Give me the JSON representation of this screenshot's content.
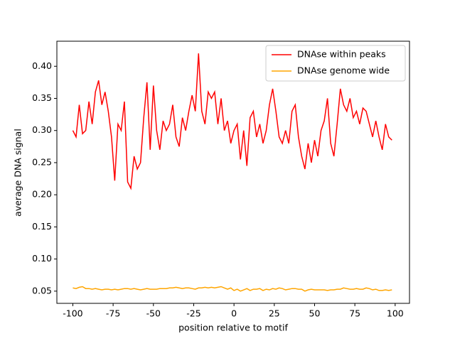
{
  "chart_data": {
    "type": "line",
    "xlabel": "position relative to motif",
    "ylabel": "average DNA signal",
    "x": [
      -100,
      -98,
      -96,
      -94,
      -92,
      -90,
      -88,
      -86,
      -84,
      -82,
      -80,
      -78,
      -76,
      -74,
      -72,
      -70,
      -68,
      -66,
      -64,
      -62,
      -60,
      -58,
      -56,
      -54,
      -52,
      -50,
      -48,
      -46,
      -44,
      -42,
      -40,
      -38,
      -36,
      -34,
      -32,
      -30,
      -28,
      -26,
      -24,
      -22,
      -20,
      -18,
      -16,
      -14,
      -12,
      -10,
      -8,
      -6,
      -4,
      -2,
      0,
      2,
      4,
      6,
      8,
      10,
      12,
      14,
      16,
      18,
      20,
      22,
      24,
      26,
      28,
      30,
      32,
      34,
      36,
      38,
      40,
      42,
      44,
      46,
      48,
      50,
      52,
      54,
      56,
      58,
      60,
      62,
      64,
      66,
      68,
      70,
      72,
      74,
      76,
      78,
      80,
      82,
      84,
      86,
      88,
      90,
      92,
      94,
      96,
      98
    ],
    "series": [
      {
        "name": "DNAse within peaks",
        "color": "#ff0000",
        "values": [
          0.3,
          0.29,
          0.34,
          0.295,
          0.3,
          0.345,
          0.31,
          0.36,
          0.378,
          0.34,
          0.36,
          0.33,
          0.29,
          0.222,
          0.31,
          0.3,
          0.345,
          0.22,
          0.21,
          0.26,
          0.24,
          0.25,
          0.32,
          0.375,
          0.27,
          0.37,
          0.3,
          0.27,
          0.315,
          0.3,
          0.31,
          0.34,
          0.29,
          0.275,
          0.32,
          0.3,
          0.33,
          0.355,
          0.33,
          0.42,
          0.33,
          0.31,
          0.36,
          0.35,
          0.36,
          0.31,
          0.35,
          0.3,
          0.315,
          0.28,
          0.3,
          0.31,
          0.255,
          0.3,
          0.245,
          0.32,
          0.33,
          0.29,
          0.31,
          0.28,
          0.3,
          0.34,
          0.365,
          0.33,
          0.29,
          0.28,
          0.3,
          0.28,
          0.33,
          0.34,
          0.29,
          0.26,
          0.24,
          0.28,
          0.25,
          0.285,
          0.26,
          0.3,
          0.315,
          0.35,
          0.28,
          0.26,
          0.31,
          0.365,
          0.34,
          0.33,
          0.35,
          0.32,
          0.33,
          0.31,
          0.335,
          0.33,
          0.31,
          0.29,
          0.315,
          0.29,
          0.27,
          0.31,
          0.29,
          0.285
        ]
      },
      {
        "name": "DNAse genome wide",
        "color": "#ffa500",
        "values": [
          0.055,
          0.054,
          0.056,
          0.057,
          0.054,
          0.054,
          0.053,
          0.054,
          0.053,
          0.052,
          0.053,
          0.053,
          0.052,
          0.053,
          0.052,
          0.053,
          0.054,
          0.054,
          0.053,
          0.054,
          0.053,
          0.052,
          0.053,
          0.054,
          0.053,
          0.053,
          0.053,
          0.054,
          0.054,
          0.054,
          0.055,
          0.055,
          0.056,
          0.055,
          0.054,
          0.055,
          0.055,
          0.054,
          0.053,
          0.055,
          0.055,
          0.056,
          0.055,
          0.056,
          0.055,
          0.056,
          0.057,
          0.055,
          0.053,
          0.055,
          0.051,
          0.053,
          0.05,
          0.052,
          0.054,
          0.051,
          0.053,
          0.053,
          0.054,
          0.051,
          0.053,
          0.052,
          0.054,
          0.053,
          0.055,
          0.054,
          0.052,
          0.053,
          0.054,
          0.054,
          0.053,
          0.053,
          0.05,
          0.052,
          0.053,
          0.052,
          0.052,
          0.052,
          0.052,
          0.051,
          0.052,
          0.052,
          0.053,
          0.053,
          0.055,
          0.054,
          0.053,
          0.053,
          0.054,
          0.053,
          0.053,
          0.055,
          0.054,
          0.052,
          0.053,
          0.051,
          0.051,
          0.052,
          0.051,
          0.052
        ]
      }
    ],
    "xlim": [
      -109.9,
      108.9
    ],
    "ylim": [
      0.031,
      0.439
    ],
    "xticks": [
      -100,
      -75,
      -50,
      -25,
      0,
      25,
      50,
      75,
      100
    ],
    "yticks": [
      {
        "value": 0.05,
        "label": "0.05"
      },
      {
        "value": 0.1,
        "label": "0.10"
      },
      {
        "value": 0.15,
        "label": "0.15"
      },
      {
        "value": 0.2,
        "label": "0.20"
      },
      {
        "value": 0.25,
        "label": "0.25"
      },
      {
        "value": 0.3,
        "label": "0.30"
      },
      {
        "value": 0.35,
        "label": "0.35"
      },
      {
        "value": 0.4,
        "label": "0.40"
      }
    ],
    "legend": "upper right"
  }
}
